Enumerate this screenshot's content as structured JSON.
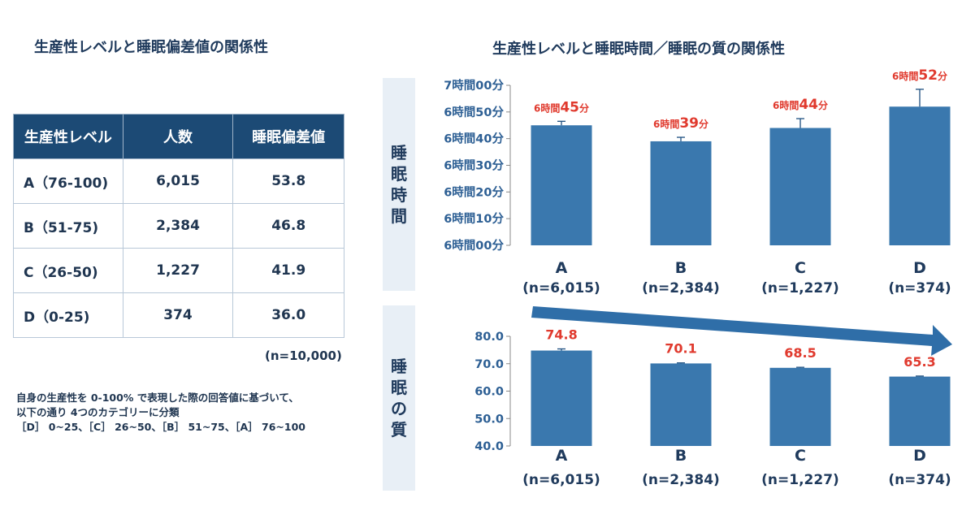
{
  "left": {
    "title": "生産性レベルと睡眠偏差値の関係性",
    "table": {
      "headers": [
        "生産性レベル",
        "人数",
        "睡眠偏差値"
      ],
      "rows": [
        [
          "A（76-100)",
          "6,015",
          "53.8"
        ],
        [
          "B（51-75)",
          "2,384",
          "46.8"
        ],
        [
          "C（26-50)",
          "1,227",
          "41.9"
        ],
        [
          "D（0-25)",
          "374",
          "36.0"
        ]
      ]
    },
    "n_total": "(n=10,000)",
    "note_lines": [
      "自身の生産性を 0-100% で表現した際の回答値に基づいて、",
      "以下の通り 4つのカテゴリーに分類",
      "［D］ 0~25、［C］ 26~50、［B］ 51~75、［A］ 76~100"
    ]
  },
  "right": {
    "title": "生産性レベルと睡眠時間／睡眠の質の関係性",
    "side_label_top": [
      "睡",
      "眠",
      "時",
      "間"
    ],
    "side_label_bottom": [
      "睡",
      "眠",
      "の",
      "質"
    ]
  },
  "chart_data": [
    {
      "type": "bar",
      "ylabel": "睡眠時間",
      "categories": [
        "A",
        "B",
        "C",
        "D"
      ],
      "category_counts": [
        "(n=6,015)",
        "(n=2,384)",
        "(n=1,227)",
        "(n=374)"
      ],
      "values": [
        405,
        399,
        404,
        412
      ],
      "error_upper": [
        406.5,
        400.5,
        407.5,
        418.5
      ],
      "ylim": [
        360,
        420
      ],
      "yticks": [
        {
          "v": 420,
          "label": "7時間00分"
        },
        {
          "v": 410,
          "label": "6時間50分"
        },
        {
          "v": 400,
          "label": "6時間40分"
        },
        {
          "v": 390,
          "label": "6時間30分"
        },
        {
          "v": 380,
          "label": "6時間20分"
        },
        {
          "v": 370,
          "label": "6時間10分"
        },
        {
          "v": 360,
          "label": "6時間00分"
        }
      ],
      "data_labels": [
        {
          "prefix": "6時間",
          "num": "45",
          "unit": "分"
        },
        {
          "prefix": "6時間",
          "num": "39",
          "unit": "分"
        },
        {
          "prefix": "6時間",
          "num": "44",
          "unit": "分"
        },
        {
          "prefix": "6時間",
          "num": "52",
          "unit": "分"
        }
      ],
      "bar_color": "#3a78ae",
      "label_color": "#e03a2e"
    },
    {
      "type": "bar",
      "ylabel": "睡眠の質",
      "categories": [
        "A",
        "B",
        "C",
        "D"
      ],
      "category_counts": [
        "(n=6,015)",
        "(n=2,384)",
        "(n=1,227)",
        "(n=374)"
      ],
      "values": [
        74.8,
        70.1,
        68.5,
        65.3
      ],
      "error_upper": [
        75.4,
        70.3,
        68.7,
        65.5
      ],
      "ylim": [
        40,
        80
      ],
      "yticks": [
        {
          "v": 80,
          "label": "80.0"
        },
        {
          "v": 70,
          "label": "70.0"
        },
        {
          "v": 60,
          "label": "60.0"
        },
        {
          "v": 50,
          "label": "50.0"
        },
        {
          "v": 40,
          "label": "40.0"
        }
      ],
      "data_labels": [
        "74.8",
        "70.1",
        "68.5",
        "65.3"
      ],
      "trend_arrow": "decreasing",
      "bar_color": "#3a78ae",
      "label_color": "#e03a2e"
    }
  ]
}
